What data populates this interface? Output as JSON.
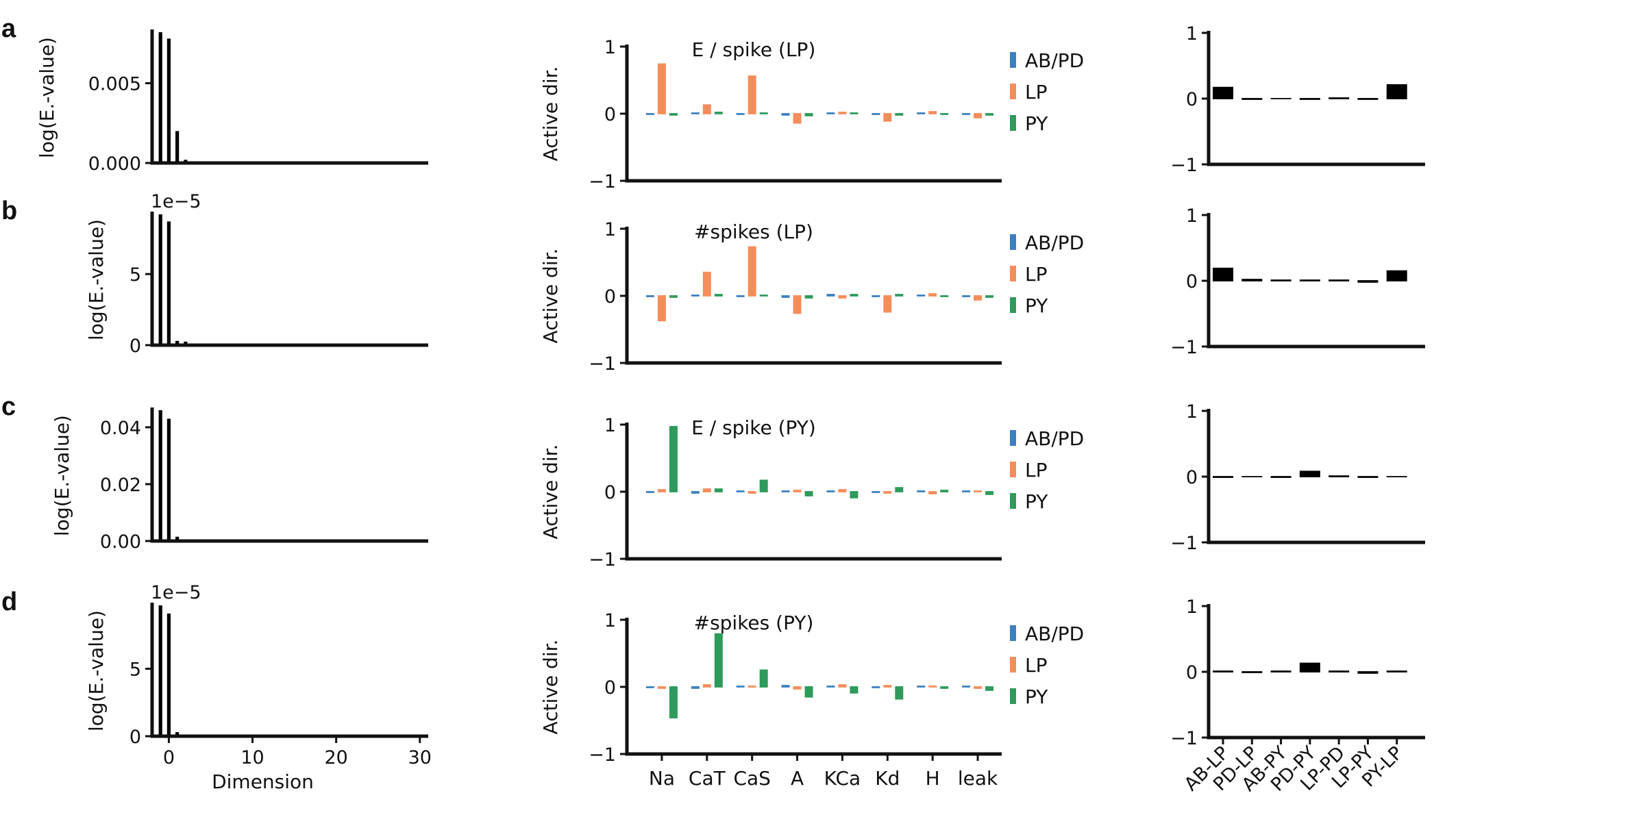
{
  "colors": {
    "AB/PD": "#3b7fc0",
    "LP": "#f58d5b",
    "PY": "#2e9a5b",
    "axis": "#111111",
    "bar": "#000000"
  },
  "legend": [
    "AB/PD",
    "LP",
    "PY"
  ],
  "chart_data": [
    {
      "panel": "a",
      "eigen": {
        "type": "bar",
        "ylabel": "log(E.-value)",
        "xlabel": "",
        "offset_text": "",
        "xlim": [
          -2,
          31
        ],
        "ylim": [
          0,
          0.0082
        ],
        "yticks": [
          0,
          0.005
        ],
        "ytick_labels": [
          "0.000",
          "0.005"
        ],
        "xticks": [],
        "xtick_labels": [],
        "x": [
          -1,
          0,
          1,
          2,
          3,
          4,
          5,
          6
        ],
        "values": [
          0.0082,
          0.0078,
          0.002,
          0.0002,
          5e-05,
          3e-05,
          2e-05,
          1e-05
        ]
      },
      "active": {
        "type": "bar",
        "title": "E / spike (LP)",
        "ylabel": "Active dir.",
        "ylim": [
          -1,
          1
        ],
        "yticks": [
          -1,
          0,
          1
        ],
        "categories": [
          "Na",
          "CaT",
          "CaS",
          "A",
          "KCa",
          "Kd",
          "H",
          "leak"
        ],
        "show_xticklabels": false,
        "series": [
          {
            "name": "AB/PD",
            "values": [
              -0.01,
              0.01,
              -0.01,
              -0.02,
              0.01,
              -0.01,
              0.01,
              -0.01
            ]
          },
          {
            "name": "LP",
            "values": [
              0.74,
              0.13,
              0.56,
              -0.14,
              0.02,
              -0.11,
              0.03,
              -0.06
            ]
          },
          {
            "name": "PY",
            "values": [
              -0.02,
              0.02,
              0.01,
              -0.03,
              0.01,
              -0.02,
              -0.01,
              -0.02
            ]
          }
        ]
      },
      "synapse": {
        "type": "bar",
        "ylim": [
          -1,
          1
        ],
        "yticks": [
          -1,
          0,
          1
        ],
        "categories": [
          "AB-LP",
          "PD-LP",
          "AB-PY",
          "PD-PY",
          "LP-PD",
          "LP-PY",
          "PY-LP"
        ],
        "show_xticklabels": false,
        "values": [
          0.17,
          -0.01,
          0.0,
          -0.01,
          0.01,
          -0.01,
          0.21
        ]
      }
    },
    {
      "panel": "b",
      "eigen": {
        "type": "bar",
        "ylabel": "log(E.-value)",
        "xlabel": "",
        "offset_text": "1e−5",
        "xlim": [
          -2,
          31
        ],
        "ylim": [
          0,
          9.2
        ],
        "yticks": [
          0,
          5
        ],
        "ytick_labels": [
          "0",
          "5"
        ],
        "xticks": [],
        "xtick_labels": [],
        "x": [
          -1,
          0,
          1,
          2,
          3,
          4,
          5,
          6
        ],
        "values": [
          9.2,
          8.7,
          0.3,
          0.25,
          0.05,
          0.03,
          0.02,
          0.01
        ]
      },
      "active": {
        "type": "bar",
        "title": "#spikes (LP)",
        "ylabel": "Active dir.",
        "ylim": [
          -1,
          1
        ],
        "yticks": [
          -1,
          0,
          1
        ],
        "categories": [
          "Na",
          "CaT",
          "CaS",
          "A",
          "KCa",
          "Kd",
          "H",
          "leak"
        ],
        "show_xticklabels": false,
        "series": [
          {
            "name": "AB/PD",
            "values": [
              -0.01,
              0.01,
              -0.01,
              -0.02,
              0.02,
              -0.01,
              0.01,
              -0.01
            ]
          },
          {
            "name": "LP",
            "values": [
              -0.37,
              0.35,
              0.73,
              -0.26,
              -0.03,
              -0.24,
              0.03,
              -0.06
            ]
          },
          {
            "name": "PY",
            "values": [
              -0.02,
              0.02,
              0.01,
              -0.03,
              0.02,
              0.02,
              -0.01,
              -0.02
            ]
          }
        ]
      },
      "synapse": {
        "type": "bar",
        "ylim": [
          -1,
          1
        ],
        "yticks": [
          -1,
          0,
          1
        ],
        "categories": [
          "AB-LP",
          "PD-LP",
          "AB-PY",
          "PD-PY",
          "LP-PD",
          "LP-PY",
          "PY-LP"
        ],
        "show_xticklabels": false,
        "values": [
          0.19,
          0.02,
          0.01,
          0.01,
          0.01,
          -0.02,
          0.15
        ]
      }
    },
    {
      "panel": "c",
      "eigen": {
        "type": "bar",
        "ylabel": "log(E.-value)",
        "xlabel": "",
        "offset_text": "",
        "xlim": [
          -2,
          31
        ],
        "ylim": [
          0,
          0.046
        ],
        "yticks": [
          0,
          0.02,
          0.04
        ],
        "ytick_labels": [
          "0.00",
          "0.02",
          "0.04"
        ],
        "xticks": [],
        "xtick_labels": [],
        "x": [
          -1,
          0,
          1,
          2,
          3,
          4,
          5,
          6
        ],
        "values": [
          0.046,
          0.043,
          0.0015,
          0.0003,
          0.0001,
          5e-05,
          3e-05,
          1e-05
        ]
      },
      "active": {
        "type": "bar",
        "title": "E / spike (PY)",
        "ylabel": "Active dir.",
        "ylim": [
          -1,
          1
        ],
        "yticks": [
          -1,
          0,
          1
        ],
        "categories": [
          "Na",
          "CaT",
          "CaS",
          "A",
          "KCa",
          "Kd",
          "H",
          "leak"
        ],
        "show_xticklabels": false,
        "series": [
          {
            "name": "AB/PD",
            "values": [
              -0.01,
              -0.02,
              0.01,
              0.01,
              0.01,
              -0.01,
              0.01,
              0.01
            ]
          },
          {
            "name": "LP",
            "values": [
              0.03,
              0.04,
              -0.02,
              0.02,
              0.03,
              -0.02,
              -0.03,
              0.01
            ]
          },
          {
            "name": "PY",
            "values": [
              0.97,
              0.04,
              0.17,
              -0.06,
              -0.09,
              0.06,
              0.02,
              -0.04
            ]
          }
        ]
      },
      "synapse": {
        "type": "bar",
        "ylim": [
          -1,
          1
        ],
        "yticks": [
          -1,
          0,
          1
        ],
        "categories": [
          "AB-LP",
          "PD-LP",
          "AB-PY",
          "PD-PY",
          "LP-PD",
          "LP-PY",
          "PY-LP"
        ],
        "show_xticklabels": false,
        "values": [
          -0.01,
          0.0,
          -0.01,
          0.08,
          0.01,
          -0.01,
          0.0
        ]
      }
    },
    {
      "panel": "d",
      "eigen": {
        "type": "bar",
        "ylabel": "log(E.-value)",
        "xlabel": "Dimension",
        "offset_text": "1e−5",
        "xlim": [
          -2,
          31
        ],
        "ylim": [
          0,
          9.7
        ],
        "yticks": [
          0,
          5
        ],
        "ytick_labels": [
          "0",
          "5"
        ],
        "xticks": [
          0,
          10,
          20,
          30
        ],
        "xtick_labels": [
          "0",
          "10",
          "20",
          "30"
        ],
        "x": [
          -1,
          0,
          1,
          2,
          3,
          4,
          5,
          6
        ],
        "values": [
          9.7,
          9.1,
          0.3,
          0.05,
          0.03,
          0.02,
          0.01,
          0.01
        ]
      },
      "active": {
        "type": "bar",
        "title": "#spikes (PY)",
        "ylabel": "Active dir.",
        "ylim": [
          -1,
          1
        ],
        "yticks": [
          -1,
          0,
          1
        ],
        "categories": [
          "Na",
          "CaT",
          "CaS",
          "A",
          "KCa",
          "Kd",
          "H",
          "leak"
        ],
        "show_xticklabels": true,
        "series": [
          {
            "name": "AB/PD",
            "values": [
              -0.01,
              -0.02,
              0.01,
              0.02,
              0.01,
              -0.01,
              0.01,
              0.01
            ]
          },
          {
            "name": "LP",
            "values": [
              -0.02,
              0.03,
              0.01,
              -0.03,
              0.03,
              0.02,
              0.01,
              -0.02
            ]
          },
          {
            "name": "PY",
            "values": [
              -0.46,
              0.79,
              0.25,
              -0.15,
              -0.09,
              -0.18,
              -0.02,
              -0.05
            ]
          }
        ]
      },
      "synapse": {
        "type": "bar",
        "ylim": [
          -1,
          1
        ],
        "yticks": [
          -1,
          0,
          1
        ],
        "categories": [
          "AB-LP",
          "PD-LP",
          "AB-PY",
          "PD-PY",
          "LP-PD",
          "LP-PY",
          "PY-LP"
        ],
        "show_xticklabels": true,
        "values": [
          0.01,
          -0.01,
          0.01,
          0.13,
          0.01,
          -0.02,
          0.01
        ]
      }
    }
  ]
}
